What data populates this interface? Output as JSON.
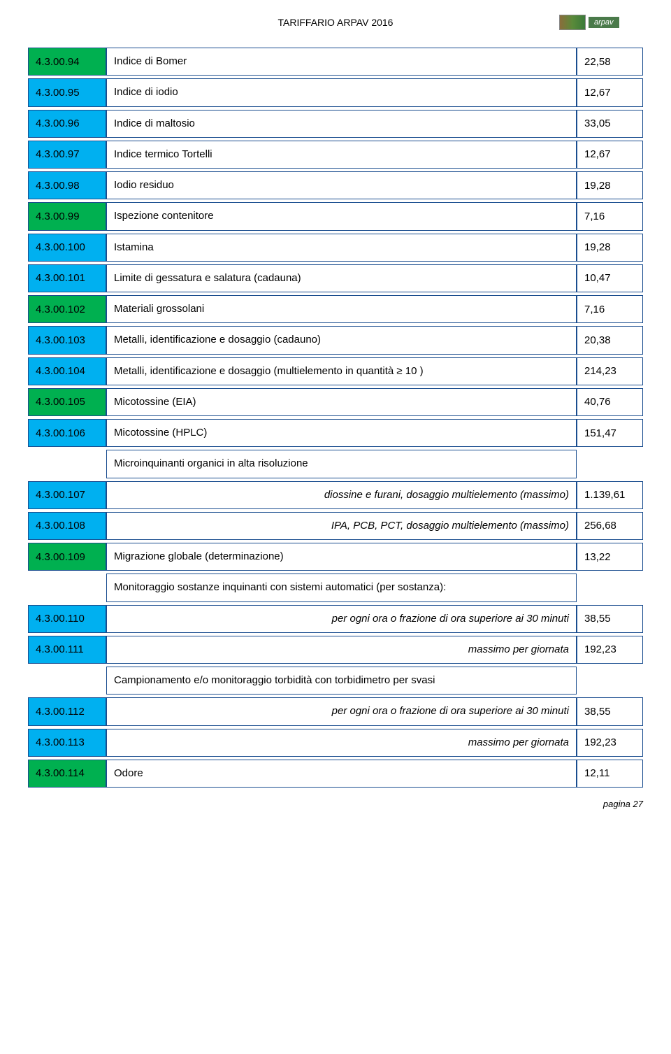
{
  "header": {
    "title": "TARIFFARIO ARPAV 2016",
    "logo_text": "arpav"
  },
  "footer": "pagina 27",
  "colors": {
    "green": "#00b050",
    "blue": "#00b0f0",
    "border": "#1a4d8f"
  },
  "rows": [
    {
      "code": "4.3.00.94",
      "codeColor": "green",
      "desc": "Indice di Bomer",
      "val": "22,58"
    },
    {
      "code": "4.3.00.95",
      "codeColor": "blue",
      "desc": "Indice di iodio",
      "val": "12,67"
    },
    {
      "code": "4.3.00.96",
      "codeColor": "blue",
      "desc": "Indice di maltosio",
      "val": "33,05"
    },
    {
      "code": "4.3.00.97",
      "codeColor": "blue",
      "desc": "Indice termico Tortelli",
      "val": "12,67"
    },
    {
      "code": "4.3.00.98",
      "codeColor": "blue",
      "desc": "Iodio residuo",
      "val": "19,28"
    },
    {
      "code": "4.3.00.99",
      "codeColor": "green",
      "desc": "Ispezione contenitore",
      "val": "7,16"
    },
    {
      "code": "4.3.00.100",
      "codeColor": "blue",
      "desc": "Istamina",
      "val": "19,28"
    },
    {
      "code": "4.3.00.101",
      "codeColor": "blue",
      "desc": "Limite di gessatura e salatura (cadauna)",
      "val": "10,47"
    },
    {
      "code": "4.3.00.102",
      "codeColor": "green",
      "desc": "Materiali grossolani",
      "val": "7,16"
    },
    {
      "code": "4.3.00.103",
      "codeColor": "blue",
      "desc": "Metalli, identificazione e dosaggio (cadauno)",
      "val": "20,38"
    },
    {
      "code": "4.3.00.104",
      "codeColor": "blue",
      "desc": "Metalli, identificazione e dosaggio (multielemento in quantità ≥ 10 )",
      "val": "214,23"
    },
    {
      "code": "4.3.00.105",
      "codeColor": "green",
      "desc": "Micotossine (EIA)",
      "val": "40,76"
    },
    {
      "code": "4.3.00.106",
      "codeColor": "blue",
      "desc": "Micotossine (HPLC)",
      "val": "151,47"
    },
    {
      "code": "",
      "codeColor": "white",
      "desc": "Microinquinanti organici in alta risoluzione",
      "val": "",
      "noVal": true,
      "noCode": true
    },
    {
      "code": "4.3.00.107",
      "codeColor": "blue",
      "desc": "diossine e furani, dosaggio multielemento (massimo)",
      "val": "1.139,61",
      "italic": true,
      "right": true
    },
    {
      "code": "4.3.00.108",
      "codeColor": "blue",
      "desc": "IPA, PCB, PCT, dosaggio multielemento (massimo)",
      "val": "256,68",
      "italic": true,
      "right": true
    },
    {
      "code": "4.3.00.109",
      "codeColor": "green",
      "desc": "Migrazione globale (determinazione)",
      "val": "13,22"
    },
    {
      "code": "",
      "codeColor": "white",
      "desc": "Monitoraggio sostanze inquinanti con sistemi automatici (per sostanza):",
      "val": "",
      "noVal": true,
      "noCode": true
    },
    {
      "code": "4.3.00.110",
      "codeColor": "blue",
      "desc": "per ogni ora o frazione di ora superiore ai 30 minuti",
      "val": "38,55",
      "italic": true,
      "right": true
    },
    {
      "code": "4.3.00.111",
      "codeColor": "blue",
      "desc": "massimo per giornata",
      "val": "192,23",
      "italic": true,
      "right": true
    },
    {
      "code": "",
      "codeColor": "white",
      "desc": "Campionamento e/o monitoraggio torbidità con torbidimetro per svasi",
      "val": "",
      "noVal": true,
      "noCode": true
    },
    {
      "code": "4.3.00.112",
      "codeColor": "blue",
      "desc": "per ogni ora o frazione di ora superiore ai 30 minuti",
      "val": "38,55",
      "italic": true,
      "right": true
    },
    {
      "code": "4.3.00.113",
      "codeColor": "blue",
      "desc": "massimo per giornata",
      "val": "192,23",
      "italic": true,
      "right": true
    },
    {
      "code": "4.3.00.114",
      "codeColor": "green",
      "desc": "Odore",
      "val": "12,11"
    }
  ]
}
